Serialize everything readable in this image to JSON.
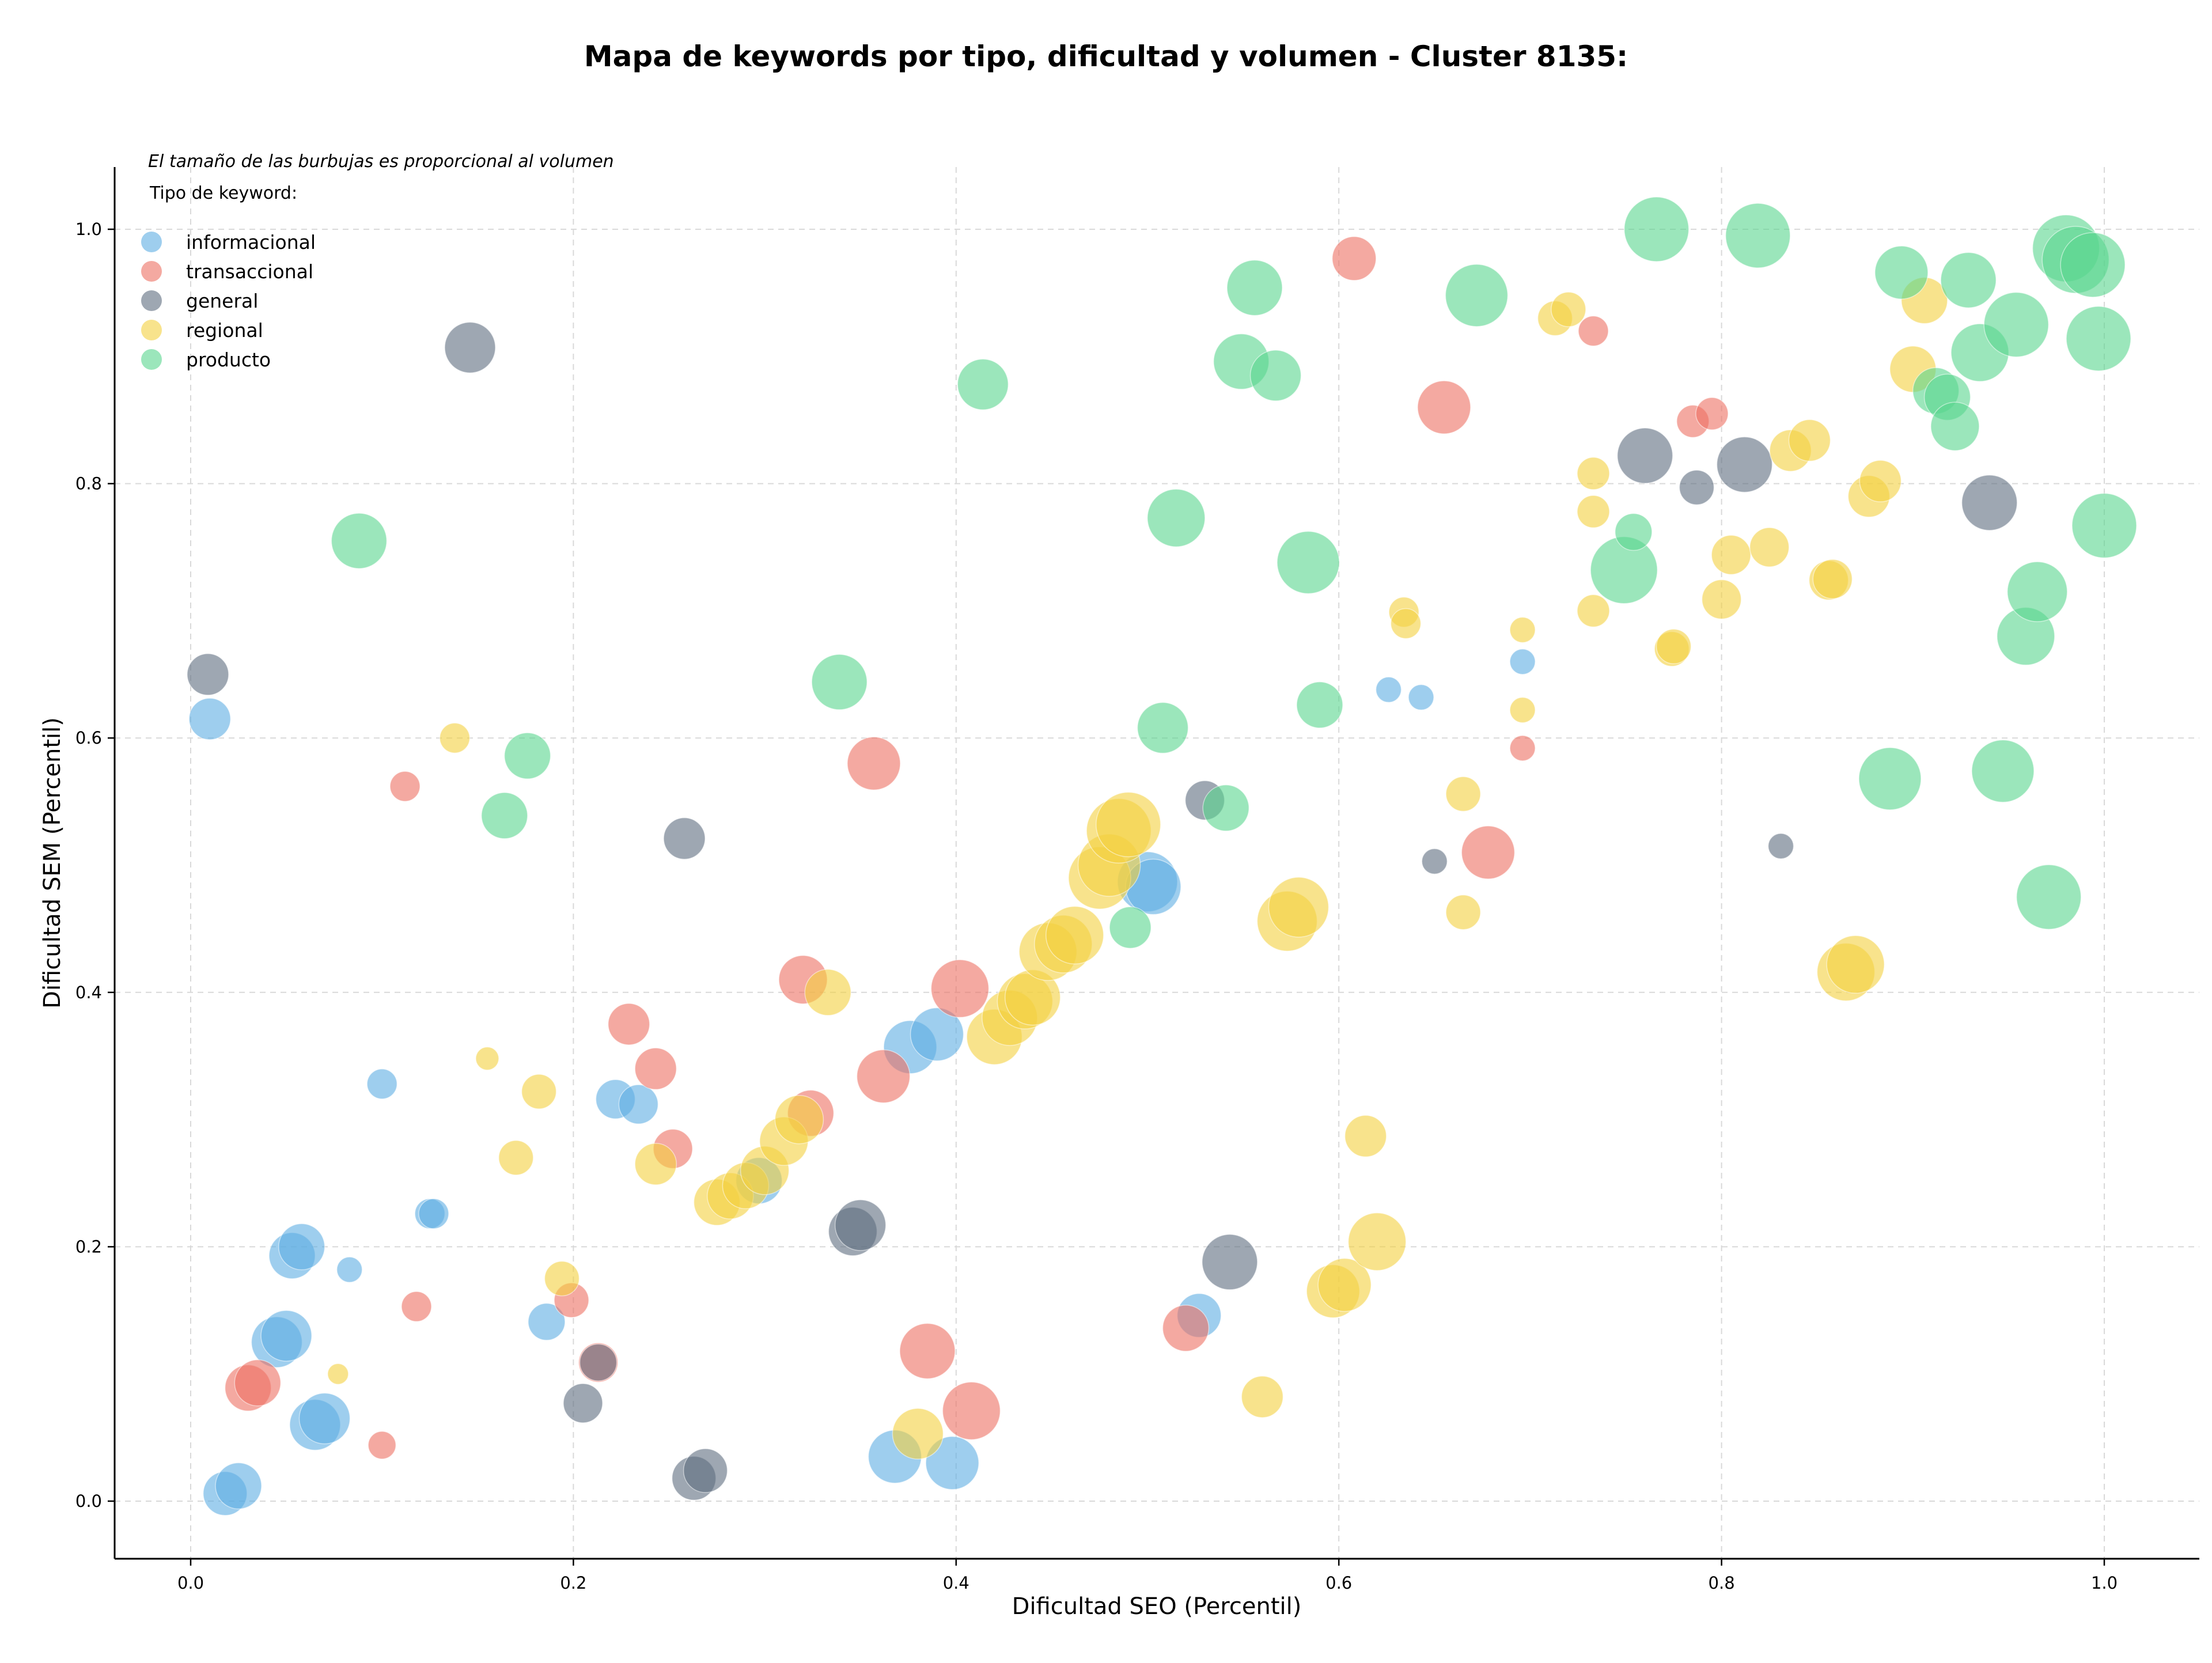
{
  "chart_data": {
    "type": "scatter",
    "title": "Mapa de keywords por tipo, dificultad y volumen - Cluster 8135:",
    "xlabel": "Dificultad SEO (Percentil)",
    "ylabel": "Dificultad SEM (Percentil)",
    "xlim": [
      -0.04,
      1.05
    ],
    "ylim": [
      -0.04,
      1.05
    ],
    "xticks": [
      0.0,
      0.2,
      0.4,
      0.6,
      0.8,
      1.0
    ],
    "yticks": [
      0.0,
      0.2,
      0.4,
      0.6,
      0.8,
      1.0
    ],
    "xtick_labels": [
      "0.0",
      "0.2",
      "0.4",
      "0.6",
      "0.8",
      "1.0"
    ],
    "ytick_labels": [
      "0.0",
      "0.2",
      "0.4",
      "0.6",
      "0.8",
      "1.0"
    ],
    "grid": true,
    "legend_position": "top-left",
    "note": "El tamaño de las burbujas es proporcional al volumen",
    "legend_title": "Tipo de keyword:",
    "series": [
      {
        "name": "informacional",
        "color": "#5dade2",
        "points": [
          [
            0.01,
            0.615,
            36
          ],
          [
            0.018,
            0.006,
            38
          ],
          [
            0.025,
            0.012,
            40
          ],
          [
            0.045,
            0.125,
            44
          ],
          [
            0.05,
            0.13,
            44
          ],
          [
            0.053,
            0.193,
            40
          ],
          [
            0.058,
            0.2,
            40
          ],
          [
            0.065,
            0.06,
            44
          ],
          [
            0.07,
            0.065,
            44
          ],
          [
            0.083,
            0.182,
            22
          ],
          [
            0.1,
            0.328,
            26
          ],
          [
            0.125,
            0.226,
            26
          ],
          [
            0.127,
            0.226,
            26
          ],
          [
            0.186,
            0.141,
            32
          ],
          [
            0.222,
            0.316,
            34
          ],
          [
            0.234,
            0.312,
            34
          ],
          [
            0.297,
            0.252,
            40
          ],
          [
            0.368,
            0.035,
            46
          ],
          [
            0.376,
            0.357,
            46
          ],
          [
            0.39,
            0.367,
            46
          ],
          [
            0.398,
            0.03,
            46
          ],
          [
            0.5,
            0.487,
            52
          ],
          [
            0.503,
            0.483,
            48
          ],
          [
            0.527,
            0.146,
            38
          ],
          [
            0.626,
            0.638,
            22
          ],
          [
            0.643,
            0.632,
            22
          ],
          [
            0.696,
            0.66,
            22
          ]
        ]
      },
      {
        "name": "transaccional",
        "color": "#ec7063",
        "points": [
          [
            0.03,
            0.089,
            40
          ],
          [
            0.035,
            0.093,
            40
          ],
          [
            0.1,
            0.044,
            24
          ],
          [
            0.112,
            0.562,
            26
          ],
          [
            0.118,
            0.153,
            26
          ],
          [
            0.199,
            0.158,
            30
          ],
          [
            0.213,
            0.109,
            34
          ],
          [
            0.229,
            0.375,
            36
          ],
          [
            0.243,
            0.34,
            36
          ],
          [
            0.252,
            0.277,
            34
          ],
          [
            0.32,
            0.41,
            42
          ],
          [
            0.324,
            0.305,
            40
          ],
          [
            0.357,
            0.58,
            46
          ],
          [
            0.362,
            0.334,
            46
          ],
          [
            0.385,
            0.118,
            48
          ],
          [
            0.402,
            0.403,
            50
          ],
          [
            0.408,
            0.071,
            50
          ],
          [
            0.52,
            0.136,
            40
          ],
          [
            0.608,
            0.977,
            38
          ],
          [
            0.655,
            0.86,
            46
          ],
          [
            0.678,
            0.51,
            46
          ],
          [
            0.696,
            0.592,
            22
          ],
          [
            0.733,
            0.92,
            26
          ],
          [
            0.785,
            0.849,
            28
          ],
          [
            0.795,
            0.855,
            28
          ]
        ]
      },
      {
        "name": "general",
        "color": "#5d6d7e",
        "points": [
          [
            0.009,
            0.65,
            36
          ],
          [
            0.146,
            0.907,
            44
          ],
          [
            0.205,
            0.077,
            34
          ],
          [
            0.213,
            0.109,
            32
          ],
          [
            0.258,
            0.521,
            36
          ],
          [
            0.263,
            0.018,
            38
          ],
          [
            0.269,
            0.024,
            38
          ],
          [
            0.346,
            0.212,
            42
          ],
          [
            0.35,
            0.217,
            44
          ],
          [
            0.53,
            0.551,
            34
          ],
          [
            0.543,
            0.188,
            48
          ],
          [
            0.65,
            0.503,
            22
          ],
          [
            0.76,
            0.822,
            48
          ],
          [
            0.787,
            0.797,
            30
          ],
          [
            0.812,
            0.815,
            48
          ],
          [
            0.831,
            0.515,
            22
          ],
          [
            0.94,
            0.785,
            48
          ]
        ]
      },
      {
        "name": "regional",
        "color": "#f4d03f",
        "points": [
          [
            0.077,
            0.1,
            18
          ],
          [
            0.138,
            0.6,
            26
          ],
          [
            0.155,
            0.348,
            20
          ],
          [
            0.17,
            0.27,
            30
          ],
          [
            0.182,
            0.322,
            30
          ],
          [
            0.194,
            0.175,
            30
          ],
          [
            0.243,
            0.265,
            36
          ],
          [
            0.275,
            0.235,
            40
          ],
          [
            0.282,
            0.24,
            40
          ],
          [
            0.29,
            0.248,
            40
          ],
          [
            0.3,
            0.26,
            42
          ],
          [
            0.31,
            0.283,
            42
          ],
          [
            0.318,
            0.3,
            42
          ],
          [
            0.333,
            0.4,
            40
          ],
          [
            0.38,
            0.053,
            44
          ],
          [
            0.42,
            0.365,
            48
          ],
          [
            0.428,
            0.38,
            48
          ],
          [
            0.436,
            0.393,
            48
          ],
          [
            0.44,
            0.396,
            48
          ],
          [
            0.448,
            0.432,
            50
          ],
          [
            0.456,
            0.438,
            50
          ],
          [
            0.462,
            0.445,
            50
          ],
          [
            0.475,
            0.49,
            54
          ],
          [
            0.48,
            0.5,
            54
          ],
          [
            0.485,
            0.527,
            56
          ],
          [
            0.49,
            0.532,
            56
          ],
          [
            0.56,
            0.082,
            36
          ],
          [
            0.573,
            0.456,
            52
          ],
          [
            0.579,
            0.467,
            52
          ],
          [
            0.597,
            0.165,
            46
          ],
          [
            0.603,
            0.17,
            46
          ],
          [
            0.614,
            0.287,
            36
          ],
          [
            0.62,
            0.204,
            50
          ],
          [
            0.634,
            0.699,
            26
          ],
          [
            0.635,
            0.69,
            26
          ],
          [
            0.665,
            0.463,
            30
          ],
          [
            0.665,
            0.556,
            30
          ],
          [
            0.696,
            0.622,
            22
          ],
          [
            0.696,
            0.685,
            22
          ],
          [
            0.713,
            0.93,
            30
          ],
          [
            0.72,
            0.937,
            30
          ],
          [
            0.733,
            0.7,
            28
          ],
          [
            0.733,
            0.778,
            28
          ],
          [
            0.733,
            0.808,
            28
          ],
          [
            0.774,
            0.67,
            30
          ],
          [
            0.775,
            0.672,
            30
          ],
          [
            0.8,
            0.709,
            34
          ],
          [
            0.805,
            0.744,
            34
          ],
          [
            0.825,
            0.75,
            34
          ],
          [
            0.836,
            0.826,
            36
          ],
          [
            0.846,
            0.834,
            36
          ],
          [
            0.856,
            0.724,
            34
          ],
          [
            0.858,
            0.725,
            34
          ],
          [
            0.865,
            0.416,
            50
          ],
          [
            0.87,
            0.422,
            50
          ],
          [
            0.877,
            0.79,
            36
          ],
          [
            0.883,
            0.802,
            36
          ],
          [
            0.9,
            0.89,
            40
          ],
          [
            0.906,
            0.944,
            40
          ]
        ]
      },
      {
        "name": "producto",
        "color": "#58d68d",
        "points": [
          [
            0.088,
            0.755,
            48
          ],
          [
            0.164,
            0.539,
            40
          ],
          [
            0.176,
            0.586,
            40
          ],
          [
            0.339,
            0.644,
            48
          ],
          [
            0.414,
            0.878,
            44
          ],
          [
            0.491,
            0.451,
            36
          ],
          [
            0.508,
            0.608,
            44
          ],
          [
            0.515,
            0.773,
            50
          ],
          [
            0.541,
            0.545,
            40
          ],
          [
            0.549,
            0.896,
            48
          ],
          [
            0.556,
            0.954,
            48
          ],
          [
            0.567,
            0.885,
            44
          ],
          [
            0.584,
            0.738,
            54
          ],
          [
            0.59,
            0.626,
            40
          ],
          [
            0.672,
            0.948,
            54
          ],
          [
            0.749,
            0.732,
            58
          ],
          [
            0.754,
            0.762,
            32
          ],
          [
            0.766,
            1.0,
            56
          ],
          [
            0.819,
            0.995,
            56
          ],
          [
            0.894,
            0.966,
            46
          ],
          [
            0.888,
            0.568,
            54
          ],
          [
            0.912,
            0.873,
            40
          ],
          [
            0.918,
            0.868,
            40
          ],
          [
            0.922,
            0.845,
            42
          ],
          [
            0.929,
            0.96,
            48
          ],
          [
            0.935,
            0.903,
            50
          ],
          [
            0.947,
            0.574,
            54
          ],
          [
            0.954,
            0.925,
            56
          ],
          [
            0.959,
            0.68,
            50
          ],
          [
            0.965,
            0.715,
            52
          ],
          [
            0.971,
            0.475,
            56
          ],
          [
            0.98,
            0.985,
            58
          ],
          [
            0.985,
            0.976,
            58
          ],
          [
            0.994,
            0.972,
            56
          ],
          [
            0.997,
            0.914,
            56
          ],
          [
            1.0,
            0.767,
            56
          ]
        ]
      }
    ]
  }
}
